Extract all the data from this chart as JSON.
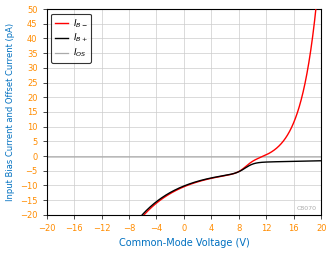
{
  "title": "",
  "xlabel": "Common-Mode Voltage (V)",
  "ylabel": "Input Bias Current and Offset Current (pA)",
  "xlim": [
    -20,
    20
  ],
  "ylim": [
    -20,
    50
  ],
  "xticks": [
    -20,
    -16,
    -12,
    -8,
    -4,
    0,
    4,
    8,
    12,
    16,
    20
  ],
  "yticks": [
    -20,
    -15,
    -10,
    -5,
    0,
    5,
    10,
    15,
    20,
    25,
    30,
    35,
    40,
    45,
    50
  ],
  "line_colors": [
    "black",
    "red",
    "#aaaaaa"
  ],
  "background_color": "#ffffff",
  "grid_color": "#cccccc",
  "watermark": "C8070",
  "tick_color": "#FF8C00",
  "label_color": "#0070C0",
  "xlabel_fontsize": 7,
  "ylabel_fontsize": 6.0,
  "tick_fontsize": 6.0,
  "legend_fontsize": 6.5
}
